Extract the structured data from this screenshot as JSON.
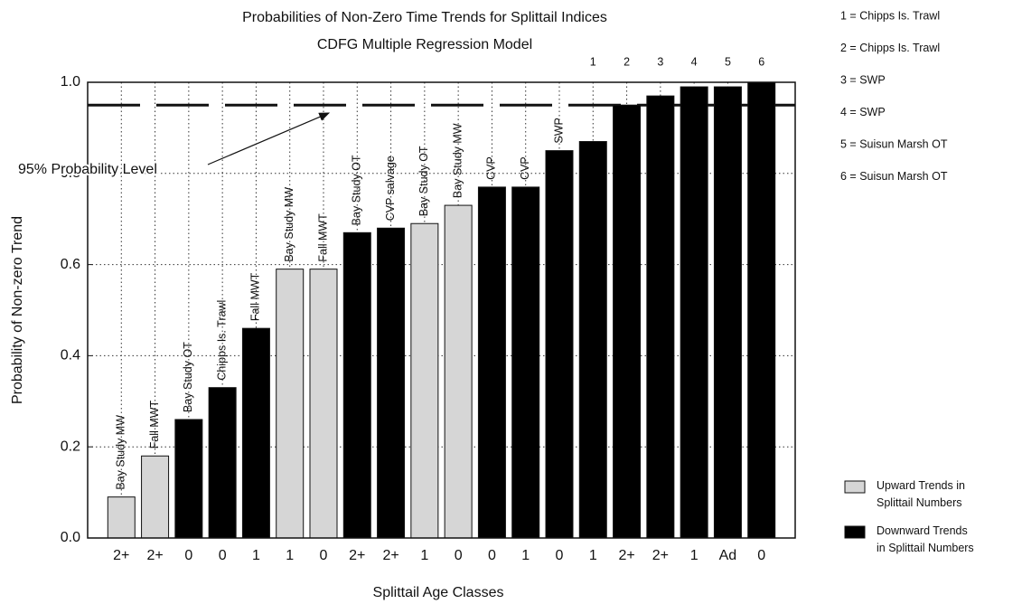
{
  "chart_data": {
    "type": "bar",
    "title": "Probabilities of Non-Zero Time Trends for Splittail Indices",
    "subtitle": "CDFG Multiple Regression Model",
    "x_label": "Splittail Age Classes",
    "y_label": "Probability of Non-zero Trend",
    "categories": [
      "2+",
      "2+",
      "0",
      "0",
      "1",
      "1",
      "0",
      "2+",
      "2+",
      "1",
      "0",
      "0",
      "1",
      "0",
      "1",
      "2+",
      "2+",
      "1",
      "Ad",
      "0"
    ],
    "bar_labels": [
      "Bay Study MW",
      "Fall MWT",
      "Bay Study OT",
      "Chipps Is. Trawl",
      "Fall MWT",
      "Bay Study MW",
      "Fall MWT",
      "Bay Study OT",
      "CVP salvage",
      "Bay Study OT",
      "Bay Study MW",
      "CVP",
      "CVP",
      "SWP",
      "1",
      "2",
      "3",
      "4",
      "5",
      "6"
    ],
    "series": [
      {
        "name": "Upward Trends in Splittail Numbers",
        "color": "#d6d6d6",
        "values": [
          0.09,
          0.18,
          null,
          null,
          null,
          0.59,
          0.59,
          null,
          null,
          0.69,
          0.73,
          null,
          null,
          null,
          null,
          null,
          null,
          null,
          null,
          null
        ]
      },
      {
        "name": "Downward Trends in Splittail Numbers",
        "color": "#000000",
        "values": [
          null,
          null,
          0.26,
          0.33,
          0.46,
          null,
          null,
          0.67,
          0.68,
          null,
          null,
          0.77,
          0.77,
          0.85,
          0.87,
          0.95,
          0.97,
          0.99,
          0.99,
          1.0
        ]
      }
    ],
    "reference_line": {
      "value": 0.95,
      "label": "95% Probability Level"
    },
    "key": [
      "1 = Chipps Is. Trawl",
      "2 = Chipps Is. Trawl",
      "3 = SWP",
      "4 = SWP",
      "5 = Suisun Marsh OT",
      "6 = Suisun Marsh OT"
    ],
    "ylim": [
      0,
      1
    ],
    "yticks": [
      {
        "value": 0,
        "label": "0.0"
      },
      0.2,
      0.4,
      0.6,
      0.8,
      {
        "value": 1,
        "label": "1.0"
      }
    ],
    "grid": true,
    "legend": "lower right"
  }
}
